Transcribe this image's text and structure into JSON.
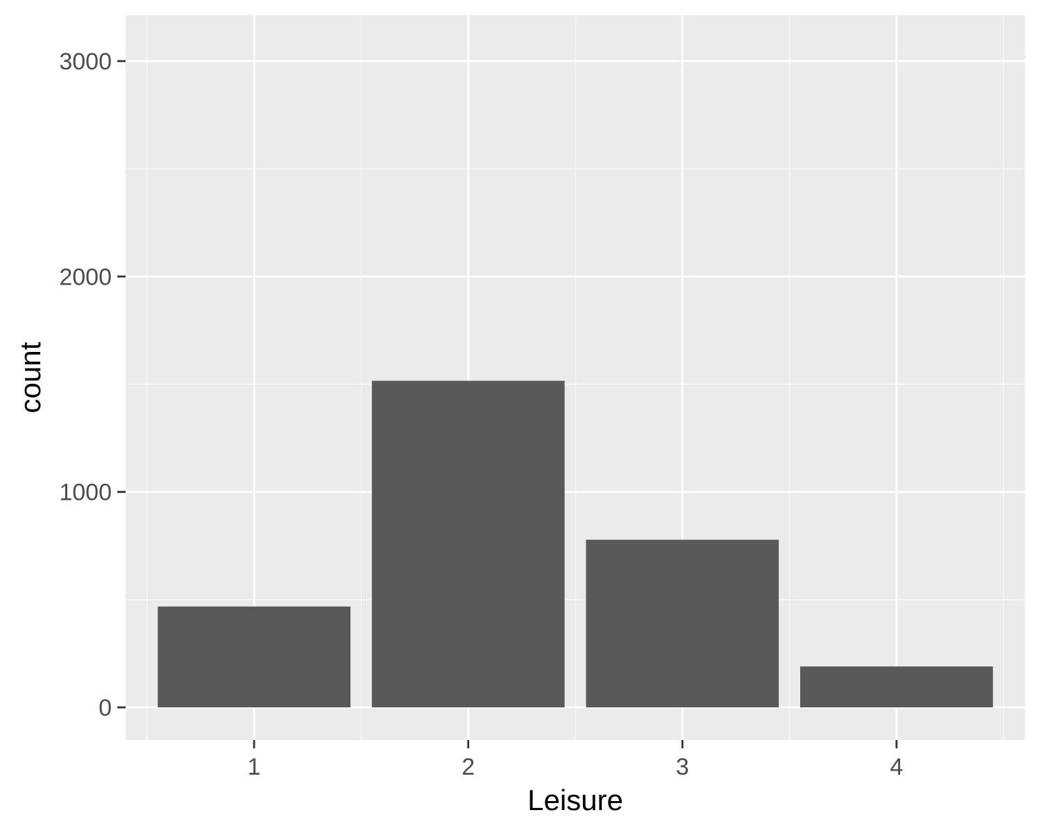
{
  "chart_data": {
    "type": "bar",
    "categories": [
      "1",
      "2",
      "3",
      "4"
    ],
    "values": [
      468,
      1516,
      778,
      190
    ],
    "title": "",
    "xlabel": "Leisure",
    "ylabel": "count",
    "ylim": [
      -150,
      3200
    ],
    "yticks": [
      0,
      1000,
      2000,
      3000
    ],
    "ytick_labels": [
      "0",
      "1000",
      "2000",
      "3000"
    ],
    "grid": true,
    "legend": "none",
    "colors": {
      "panel_background": "#ebebeb",
      "grid_major": "#ffffff",
      "grid_minor": "#f7f7f7",
      "bar_fill": "#595959",
      "tick_text": "#4d4d4d",
      "axis_title_text": "#000000",
      "tick_mark": "#333333"
    }
  }
}
